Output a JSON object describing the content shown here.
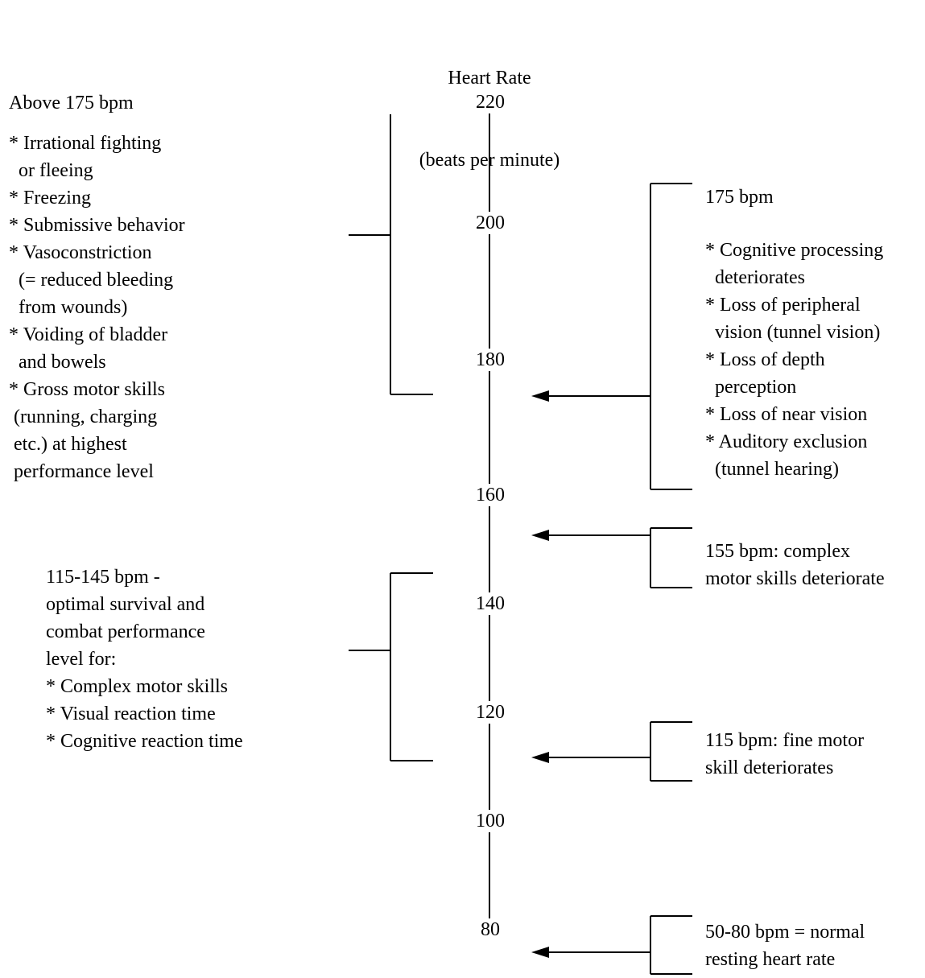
{
  "title": {
    "line1": "Heart Rate",
    "line2": "(beats per minute)"
  },
  "axis": {
    "ticks": [
      "220",
      "200",
      "180",
      "160",
      "140",
      "120",
      "100",
      "80"
    ]
  },
  "left_blocks": {
    "top": {
      "heading": "Above 175 bpm",
      "lines": [
        "* Irrational fighting",
        "  or fleeing",
        "* Freezing",
        "* Submissive behavior",
        "* Vasoconstriction",
        "  (= reduced bleeding",
        "  from wounds)",
        "* Voiding of bladder",
        "  and bowels",
        "* Gross motor skills",
        " (running, charging",
        " etc.) at highest",
        " performance level"
      ]
    },
    "middle": {
      "lines": [
        "115-145 bpm -",
        "optimal survival and",
        "combat performance",
        "level for:",
        "* Complex motor skills",
        "* Visual reaction time",
        "* Cognitive reaction time"
      ]
    }
  },
  "right_blocks": {
    "b175": {
      "heading": "175 bpm",
      "lines": [
        "* Cognitive processing",
        "  deteriorates",
        "* Loss of peripheral",
        "  vision (tunnel vision)",
        "* Loss of depth",
        "  perception",
        "* Loss of near vision",
        "* Auditory exclusion",
        "  (tunnel hearing)"
      ]
    },
    "b155": {
      "lines": [
        "155 bpm: complex",
        "motor skills deteriorate"
      ]
    },
    "b115": {
      "lines": [
        "115 bpm: fine motor",
        "skill deteriorates"
      ]
    },
    "b80": {
      "lines": [
        "50-80 bpm = normal",
        "resting heart rate"
      ]
    }
  }
}
